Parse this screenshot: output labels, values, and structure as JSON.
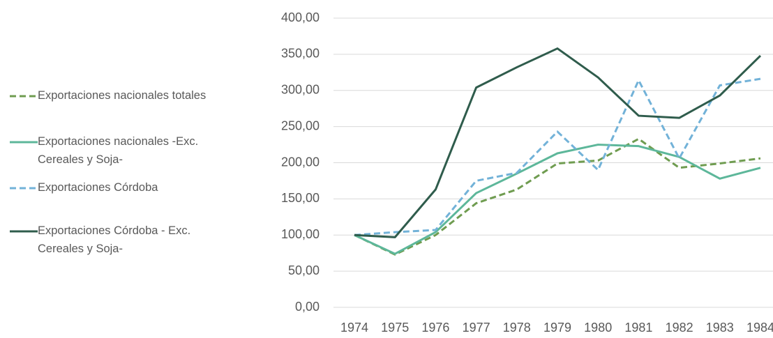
{
  "chart_data": {
    "type": "line",
    "categories": [
      "1974",
      "1975",
      "1976",
      "1977",
      "1978",
      "1979",
      "1980",
      "1981",
      "1982",
      "1983",
      "1984"
    ],
    "series": [
      {
        "name": "Exportaciones nacionales totales",
        "color": "#6f9c50",
        "dashed": true,
        "values": [
          100,
          73,
          100,
          144,
          163,
          199,
          203,
          233,
          193,
          199,
          206
        ]
      },
      {
        "name": "Exportaciones nacionales -Exc. Cereales y Soja-",
        "color": "#5db79a",
        "dashed": false,
        "values": [
          100,
          74,
          104,
          158,
          185,
          213,
          225,
          223,
          208,
          178,
          193
        ]
      },
      {
        "name": "Exportaciones Córdoba",
        "color": "#72b2d8",
        "dashed": true,
        "values": [
          100,
          104,
          107,
          175,
          186,
          243,
          190,
          314,
          206,
          307,
          316
        ]
      },
      {
        "name": "Exportaciones Córdoba - Exc. Cereales y Soja-",
        "color": "#2f5c4c",
        "dashed": false,
        "values": [
          100,
          97,
          163,
          304,
          332,
          358,
          318,
          265,
          262,
          293,
          348
        ]
      }
    ],
    "ylim": [
      0,
      400
    ],
    "yticks": [
      {
        "value": 0,
        "label": "0,00"
      },
      {
        "value": 50,
        "label": "50,00"
      },
      {
        "value": 100,
        "label": "100,00"
      },
      {
        "value": 150,
        "label": "150,00"
      },
      {
        "value": 200,
        "label": "200,00"
      },
      {
        "value": 250,
        "label": "250,00"
      },
      {
        "value": 300,
        "label": "300,00"
      },
      {
        "value": 350,
        "label": "350,00"
      },
      {
        "value": 400,
        "label": "400,00"
      }
    ],
    "grid": true,
    "legend": "left"
  }
}
